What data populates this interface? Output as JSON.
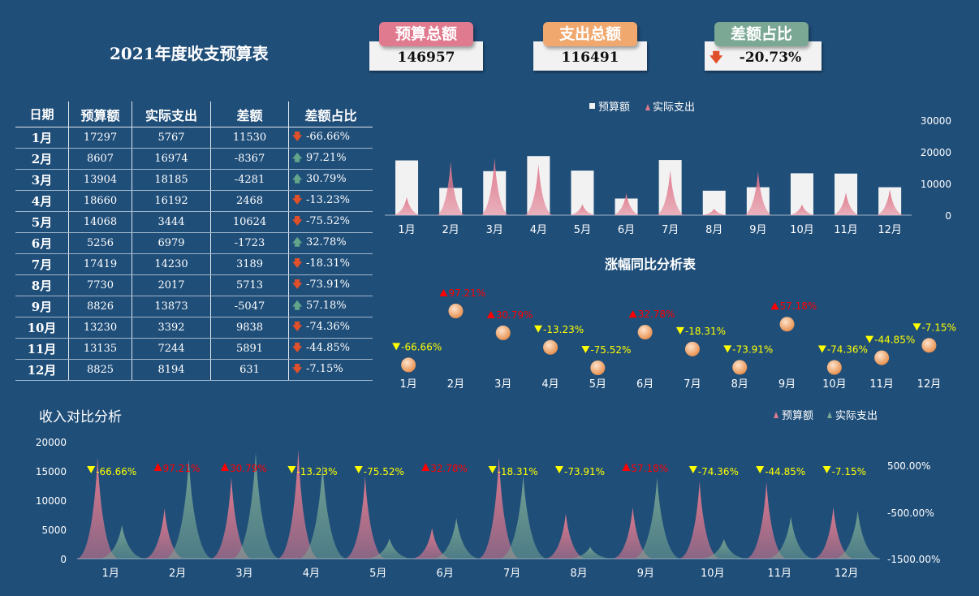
{
  "title": "2021年度收支预算表",
  "kpis": [
    {
      "label": "预算总额",
      "value": "146957",
      "color": "#e07a8e"
    },
    {
      "label": "支出总额",
      "value": "116491",
      "color": "#f0a86e"
    },
    {
      "label": "差额占比",
      "value": "-20.73%",
      "color": "#7aa894",
      "trend": "down"
    }
  ],
  "table": {
    "headers": [
      "日期",
      "预算额",
      "实际支出",
      "差额",
      "差额占比"
    ],
    "rows": [
      {
        "month": "1月",
        "budget": "17297",
        "actual": "5767",
        "diff": "11530",
        "pct": "-66.66%",
        "trend": "down"
      },
      {
        "month": "2月",
        "budget": "8607",
        "actual": "16974",
        "diff": "-8367",
        "pct": "97.21%",
        "trend": "up"
      },
      {
        "month": "3月",
        "budget": "13904",
        "actual": "18185",
        "diff": "-4281",
        "pct": "30.79%",
        "trend": "up"
      },
      {
        "month": "4月",
        "budget": "18660",
        "actual": "16192",
        "diff": "2468",
        "pct": "-13.23%",
        "trend": "down"
      },
      {
        "month": "5月",
        "budget": "14068",
        "actual": "3444",
        "diff": "10624",
        "pct": "-75.52%",
        "trend": "down"
      },
      {
        "month": "6月",
        "budget": "5256",
        "actual": "6979",
        "diff": "-1723",
        "pct": "32.78%",
        "trend": "up"
      },
      {
        "month": "7月",
        "budget": "17419",
        "actual": "14230",
        "diff": "3189",
        "pct": "-18.31%",
        "trend": "down"
      },
      {
        "month": "8月",
        "budget": "7730",
        "actual": "2017",
        "diff": "5713",
        "pct": "-73.91%",
        "trend": "down"
      },
      {
        "month": "9月",
        "budget": "8826",
        "actual": "13873",
        "diff": "-5047",
        "pct": "57.18%",
        "trend": "up"
      },
      {
        "month": "10月",
        "budget": "13230",
        "actual": "3392",
        "diff": "9838",
        "pct": "-74.36%",
        "trend": "down"
      },
      {
        "month": "11月",
        "budget": "13135",
        "actual": "7244",
        "diff": "5891",
        "pct": "-44.85%",
        "trend": "down"
      },
      {
        "month": "12月",
        "budget": "8825",
        "actual": "8194",
        "diff": "631",
        "pct": "-7.15%",
        "trend": "down"
      }
    ]
  },
  "chart_data": [
    {
      "type": "bar",
      "categories": [
        "1月",
        "2月",
        "3月",
        "4月",
        "5月",
        "6月",
        "7月",
        "8月",
        "9月",
        "10月",
        "11月",
        "12月"
      ],
      "series": [
        {
          "name": "预算额",
          "values": [
            17297,
            8607,
            13904,
            18660,
            14068,
            5256,
            17419,
            7730,
            8826,
            13230,
            13135,
            8825
          ],
          "color": "#f2f2f2"
        },
        {
          "name": "实际支出",
          "values": [
            5767,
            16974,
            18185,
            16192,
            3444,
            6979,
            14230,
            2017,
            13873,
            3392,
            7244,
            8194
          ],
          "color": "#e07a8e"
        }
      ],
      "yticks": [
        "0",
        "10000",
        "20000",
        "30000"
      ],
      "ylim": [
        0,
        30000
      ],
      "legend": "top"
    },
    {
      "type": "scatter",
      "title": "涨幅同比分析表",
      "categories": [
        "1月",
        "2月",
        "3月",
        "4月",
        "5月",
        "6月",
        "7月",
        "8月",
        "9月",
        "10月",
        "11月",
        "12月"
      ],
      "values": [
        -66.66,
        97.21,
        30.79,
        -13.23,
        -75.52,
        32.78,
        -18.31,
        -73.91,
        57.18,
        -74.36,
        -44.85,
        -7.15
      ],
      "labels": [
        "-66.66%",
        "97.21%",
        "30.79%",
        "-13.23%",
        "-75.52%",
        "32.78%",
        "-18.31%",
        "-73.91%",
        "57.18%",
        "-74.36%",
        "-44.85%",
        "-7.15%"
      ],
      "up_color": "#ff0000",
      "down_color": "#ffff00"
    },
    {
      "type": "area",
      "title": "收入对比分析",
      "categories": [
        "1月",
        "2月",
        "3月",
        "4月",
        "5月",
        "6月",
        "7月",
        "8月",
        "9月",
        "10月",
        "11月",
        "12月"
      ],
      "series": [
        {
          "name": "预算额",
          "values": [
            17297,
            8607,
            13904,
            18660,
            14068,
            5256,
            17419,
            7730,
            8826,
            13230,
            13135,
            8825
          ],
          "color": "#e07a8e"
        },
        {
          "name": "实际支出",
          "values": [
            5767,
            16974,
            18185,
            16192,
            3444,
            6979,
            14230,
            2017,
            13873,
            3392,
            7244,
            8194
          ],
          "color": "#7aa894"
        }
      ],
      "yticks": [
        "0",
        "5000",
        "10000",
        "15000",
        "20000"
      ],
      "ylim": [
        0,
        20000
      ],
      "y2ticks": [
        "500.00%",
        "-500.00%",
        "-1500.00%"
      ],
      "pct_values": [
        -66.66,
        97.21,
        30.79,
        -13.23,
        -75.52,
        32.78,
        -18.31,
        -73.91,
        57.18,
        -74.36,
        -44.85,
        -7.15
      ],
      "pct_labels": [
        "-66.66%",
        "97.21%",
        "30.79%",
        "-13.23%",
        "-75.52%",
        "32.78%",
        "-18.31%",
        "-73.91%",
        "57.18%",
        "-74.36%",
        "-44.85%",
        "-7.15%"
      ],
      "legend": "top-right"
    }
  ]
}
